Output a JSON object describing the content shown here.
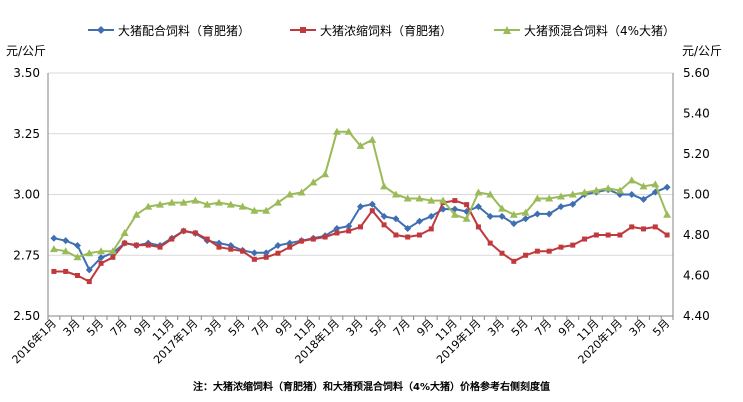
{
  "chart_data": {
    "type": "line",
    "x": [
      "2016年1月",
      "2月",
      "3月",
      "4月",
      "5月",
      "6月",
      "7月",
      "8月",
      "9月",
      "10月",
      "11月",
      "12月",
      "2017年1月",
      "2月",
      "3月",
      "4月",
      "5月",
      "6月",
      "7月",
      "8月",
      "9月",
      "10月",
      "11月",
      "12月",
      "2018年1月",
      "2月",
      "3月",
      "4月",
      "5月",
      "6月",
      "7月",
      "8月",
      "9月",
      "10月",
      "11月",
      "12月",
      "2019年1月",
      "2月",
      "3月",
      "4月",
      "5月",
      "6月",
      "7月",
      "8月",
      "9月",
      "10月",
      "11月",
      "12月",
      "2020年1月",
      "2月",
      "3月",
      "4月",
      "5月"
    ],
    "x_tick_labels": [
      "2016年1月",
      "3月",
      "5月",
      "7月",
      "9月",
      "11月",
      "2017年1月",
      "3月",
      "5月",
      "7月",
      "9月",
      "11月",
      "2018年1月",
      "3月",
      "5月",
      "7月",
      "9月",
      "11月",
      "2019年1月",
      "3月",
      "5月",
      "7月",
      "9月",
      "11月",
      "2020年1月",
      "3月",
      "5月"
    ],
    "series": [
      {
        "name": "大猪配合饲料（育肥猪）",
        "color": "#3F6FB0",
        "axis": "left",
        "marker": "diamond",
        "values": [
          2.82,
          2.81,
          2.79,
          2.69,
          2.74,
          2.76,
          2.8,
          2.79,
          2.8,
          2.79,
          2.82,
          2.85,
          2.84,
          2.81,
          2.8,
          2.79,
          2.77,
          2.76,
          2.76,
          2.79,
          2.8,
          2.81,
          2.82,
          2.83,
          2.86,
          2.87,
          2.95,
          2.96,
          2.91,
          2.9,
          2.86,
          2.89,
          2.91,
          2.94,
          2.94,
          2.93,
          2.95,
          2.91,
          2.91,
          2.88,
          2.9,
          2.92,
          2.92,
          2.95,
          2.96,
          3.0,
          3.01,
          3.02,
          3.0,
          3.0,
          2.98,
          3.01,
          3.03
        ]
      },
      {
        "name": "大猪浓缩饲料（育肥猪）",
        "color": "#C0393D",
        "axis": "right",
        "marker": "square",
        "values": [
          4.62,
          4.62,
          4.6,
          4.57,
          4.66,
          4.69,
          4.76,
          4.75,
          4.75,
          4.74,
          4.78,
          4.82,
          4.81,
          4.78,
          4.74,
          4.73,
          4.72,
          4.68,
          4.69,
          4.71,
          4.74,
          4.77,
          4.78,
          4.79,
          4.81,
          4.82,
          4.84,
          4.92,
          4.85,
          4.8,
          4.79,
          4.8,
          4.83,
          4.96,
          4.97,
          4.95,
          4.84,
          4.76,
          4.71,
          4.67,
          4.7,
          4.72,
          4.72,
          4.74,
          4.75,
          4.78,
          4.8,
          4.8,
          4.8,
          4.84,
          4.83,
          4.84,
          4.8
        ]
      },
      {
        "name": "大猪预混合饲料（4%大猪）",
        "color": "#9BBB59",
        "axis": "right",
        "marker": "triangle",
        "values": [
          4.73,
          4.72,
          4.69,
          4.71,
          4.72,
          4.72,
          4.81,
          4.9,
          4.94,
          4.95,
          4.96,
          4.96,
          4.97,
          4.95,
          4.96,
          4.95,
          4.94,
          4.92,
          4.92,
          4.96,
          5.0,
          5.01,
          5.06,
          5.1,
          5.31,
          5.31,
          5.24,
          5.27,
          5.04,
          5.0,
          4.98,
          4.98,
          4.97,
          4.97,
          4.9,
          4.88,
          5.01,
          5.0,
          4.93,
          4.9,
          4.91,
          4.98,
          4.98,
          4.99,
          5.0,
          5.01,
          5.02,
          5.03,
          5.02,
          5.07,
          5.04,
          5.05,
          4.9
        ]
      }
    ],
    "y_left": {
      "label": "元/公斤",
      "range": [
        2.5,
        3.5
      ],
      "ticks": [
        "2.50",
        "2.75",
        "3.00",
        "3.25",
        "3.50"
      ]
    },
    "y_right": {
      "label": "元/公斤",
      "range": [
        4.4,
        5.6
      ],
      "ticks": [
        "4.40",
        "4.60",
        "4.80",
        "5.00",
        "5.20",
        "5.40",
        "5.60"
      ]
    },
    "grid": true,
    "legend_position": "top",
    "note": "注：大猪浓缩饲料（育肥猪）和大猪预混合饲料（4%大猪）价格参考右侧刻度值"
  }
}
